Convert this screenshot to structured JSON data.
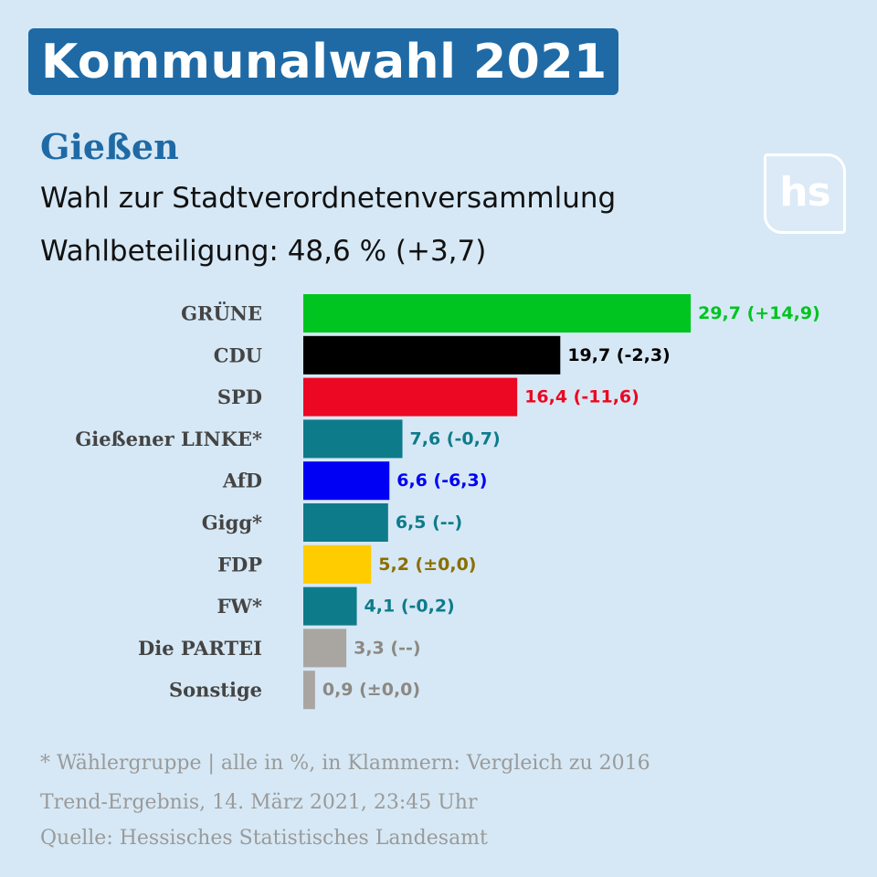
{
  "header": {
    "title": "Kommunalwahl 2021",
    "city": "Gießen",
    "subtitle": "Wahl zur Stadtverordnetenversammlung",
    "turnout": "Wahlbeteiligung: 48,6 % (+3,7)"
  },
  "logo": {
    "text": "hs"
  },
  "chart_data": {
    "type": "bar",
    "orientation": "horizontal",
    "categories": [
      "GRÜNE",
      "CDU",
      "SPD",
      "Gießener LINKE*",
      "AfD",
      "Gigg*",
      "FDP",
      "FW*",
      "Die PARTEI",
      "Sonstige"
    ],
    "values": [
      29.7,
      19.7,
      16.4,
      7.6,
      6.6,
      6.5,
      5.2,
      4.1,
      3.3,
      0.9
    ],
    "value_labels": [
      "29,7 (+14,9)",
      "19,7 (-2,3)",
      "16,4 (-11,6)",
      "7,6 (-0,7)",
      "6,6 (-6,3)",
      "6,5 (--)",
      "5,2 (±0,0)",
      "4,1 (-0,2)",
      "3,3 (--)",
      "0,9 (±0,0)"
    ],
    "bar_colors": [
      "#00c41f",
      "#000000",
      "#ec0722",
      "#0e7b8b",
      "#0000f5",
      "#0e7b8b",
      "#ffcc00",
      "#0e7b8b",
      "#a9a5a1",
      "#a9a5a1"
    ],
    "label_colors": [
      "#00c41f",
      "#000000",
      "#ec0722",
      "#0e7b8b",
      "#0000f5",
      "#0e7b8b",
      "#8a6e00",
      "#0e7b8b",
      "#8c8883",
      "#8c8883"
    ],
    "grid": false,
    "legend": "none"
  },
  "footer": {
    "note": "* Wählergruppe | alle in %, in Klammern: Vergleich zu 2016",
    "status": "Trend-Ergebnis, 14. März 2021, 23:45 Uhr",
    "source": "Quelle: Hessisches Statistisches Landesamt"
  },
  "colors": {
    "background": "#d6e8f5",
    "accent": "#1f6aa5",
    "category_text": "#444444",
    "footer_text": "#9a9a9a"
  }
}
